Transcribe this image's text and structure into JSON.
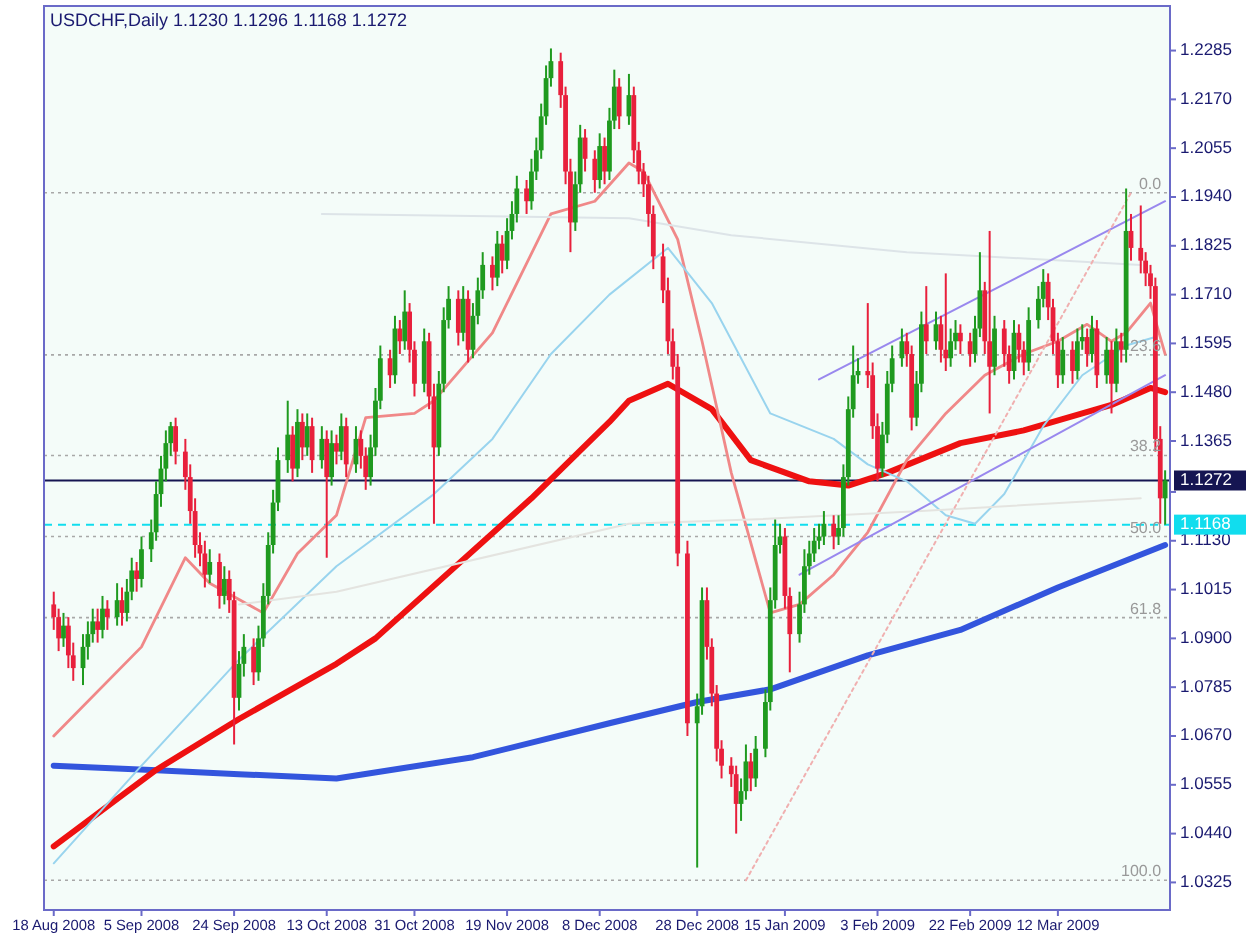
{
  "chart_data": {
    "type": "candlestick",
    "title": "USDCHF,Daily  1.1230 1.1296 1.1168 1.1272",
    "xlim": [
      "2008-08-16",
      "2009-04-04"
    ],
    "xticks": [
      {
        "value": "2008-08-18",
        "label": "18 Aug 2008"
      },
      {
        "value": "2008-09-05",
        "label": "5 Sep 2008"
      },
      {
        "value": "2008-09-24",
        "label": "24 Sep 2008"
      },
      {
        "value": "2008-10-13",
        "label": "13 Oct 2008"
      },
      {
        "value": "2008-10-31",
        "label": "31 Oct 2008"
      },
      {
        "value": "2008-11-19",
        "label": "19 Nov 2008"
      },
      {
        "value": "2008-12-08",
        "label": "8 Dec 2008"
      },
      {
        "value": "2008-12-28",
        "label": "28 Dec 2008"
      },
      {
        "value": "2009-01-15",
        "label": "15 Jan 2009"
      },
      {
        "value": "2009-02-03",
        "label": "3 Feb 2009"
      },
      {
        "value": "2009-02-22",
        "label": "22 Feb 2009"
      },
      {
        "value": "2009-03-12",
        "label": "12 Mar 2009"
      }
    ],
    "ylim": [
      1.026,
      1.239
    ],
    "yticks": [
      1.2285,
      {
        "value": 1.217,
        "label": "1.2170"
      },
      1.2055,
      {
        "value": 1.194,
        "label": "1.1940"
      },
      1.1825,
      {
        "value": 1.171,
        "label": "1.1710"
      },
      1.1595,
      {
        "value": 1.148,
        "label": "1.1480"
      },
      1.1365,
      {
        "value": 1.1245,
        "label": null
      },
      {
        "value": 1.113,
        "label": "1.1130"
      },
      1.1015,
      {
        "value": 1.09,
        "label": "1.0900"
      },
      1.0785,
      {
        "value": 1.067,
        "label": "1.0670"
      },
      1.0555,
      {
        "value": 1.044,
        "label": "1.0440"
      },
      1.0325
    ],
    "x": [
      "2008-08-18",
      "2008-08-19",
      "2008-08-20",
      "2008-08-21",
      "2008-08-22",
      "2008-08-24",
      "2008-08-25",
      "2008-08-26",
      "2008-08-27",
      "2008-08-28",
      "2008-08-29",
      "2008-08-31",
      "2008-09-01",
      "2008-09-02",
      "2008-09-03",
      "2008-09-04",
      "2008-09-05",
      "2008-09-07",
      "2008-09-08",
      "2008-09-09",
      "2008-09-10",
      "2008-09-11",
      "2008-09-12",
      "2008-09-14",
      "2008-09-15",
      "2008-09-16",
      "2008-09-17",
      "2008-09-18",
      "2008-09-19",
      "2008-09-21",
      "2008-09-22",
      "2008-09-23",
      "2008-09-24",
      "2008-09-25",
      "2008-09-26",
      "2008-09-28",
      "2008-09-29",
      "2008-09-30",
      "2008-10-01",
      "2008-10-02",
      "2008-10-03",
      "2008-10-05",
      "2008-10-06",
      "2008-10-07",
      "2008-10-08",
      "2008-10-09",
      "2008-10-10",
      "2008-10-12",
      "2008-10-13",
      "2008-10-14",
      "2008-10-15",
      "2008-10-16",
      "2008-10-17",
      "2008-10-19",
      "2008-10-20",
      "2008-10-21",
      "2008-10-22",
      "2008-10-23",
      "2008-10-24",
      "2008-10-26",
      "2008-10-27",
      "2008-10-28",
      "2008-10-29",
      "2008-10-30",
      "2008-10-31",
      "2008-11-02",
      "2008-11-03",
      "2008-11-04",
      "2008-11-05",
      "2008-11-06",
      "2008-11-07",
      "2008-11-09",
      "2008-11-10",
      "2008-11-11",
      "2008-11-12",
      "2008-11-13",
      "2008-11-14",
      "2008-11-16",
      "2008-11-17",
      "2008-11-18",
      "2008-11-19",
      "2008-11-20",
      "2008-11-21",
      "2008-11-23",
      "2008-11-24",
      "2008-11-25",
      "2008-11-26",
      "2008-11-27",
      "2008-11-28",
      "2008-11-30",
      "2008-12-01",
      "2008-12-02",
      "2008-12-03",
      "2008-12-04",
      "2008-12-05",
      "2008-12-07",
      "2008-12-08",
      "2008-12-09",
      "2008-12-10",
      "2008-12-11",
      "2008-12-12",
      "2008-12-14",
      "2008-12-15",
      "2008-12-16",
      "2008-12-17",
      "2008-12-18",
      "2008-12-19",
      "2008-12-21",
      "2008-12-22",
      "2008-12-23",
      "2008-12-24",
      "2008-12-26",
      "2008-12-28",
      "2008-12-29",
      "2008-12-30",
      "2008-12-31",
      "2009-01-01",
      "2009-01-02",
      "2009-01-04",
      "2009-01-05",
      "2009-01-06",
      "2009-01-07",
      "2009-01-08",
      "2009-01-09",
      "2009-01-11",
      "2009-01-12",
      "2009-01-13",
      "2009-01-14",
      "2009-01-15",
      "2009-01-16",
      "2009-01-18",
      "2009-01-19",
      "2009-01-20",
      "2009-01-21",
      "2009-01-22",
      "2009-01-23",
      "2009-01-25",
      "2009-01-26",
      "2009-01-27",
      "2009-01-28",
      "2009-01-29",
      "2009-01-30",
      "2009-02-01",
      "2009-02-02",
      "2009-02-03",
      "2009-02-04",
      "2009-02-05",
      "2009-02-06",
      "2009-02-08",
      "2009-02-09",
      "2009-02-10",
      "2009-02-11",
      "2009-02-12",
      "2009-02-13",
      "2009-02-15",
      "2009-02-16",
      "2009-02-17",
      "2009-02-18",
      "2009-02-19",
      "2009-02-20",
      "2009-02-22",
      "2009-02-23",
      "2009-02-24",
      "2009-02-25",
      "2009-02-26",
      "2009-02-27",
      "2009-03-01",
      "2009-03-02",
      "2009-03-03",
      "2009-03-04",
      "2009-03-05",
      "2009-03-06",
      "2009-03-08",
      "2009-03-09",
      "2009-03-10",
      "2009-03-11",
      "2009-03-12",
      "2009-03-13",
      "2009-03-15",
      "2009-03-16",
      "2009-03-17",
      "2009-03-18",
      "2009-03-19",
      "2009-03-20",
      "2009-03-22",
      "2009-03-23",
      "2009-03-24",
      "2009-03-25",
      "2009-03-26",
      "2009-03-27",
      "2009-03-29",
      "2009-03-30",
      "2009-03-31",
      "2009-04-01",
      "2009-04-02",
      "2009-04-03"
    ],
    "ohlc": [
      [
        1.098,
        1.101,
        1.092,
        1.095
      ],
      [
        1.095,
        1.097,
        1.087,
        1.09
      ],
      [
        1.09,
        1.096,
        1.088,
        1.093
      ],
      [
        1.093,
        1.095,
        1.083,
        1.086
      ],
      [
        1.086,
        1.089,
        1.08,
        1.083
      ],
      [
        1.083,
        1.091,
        1.079,
        1.088
      ],
      [
        1.088,
        1.094,
        1.085,
        1.091
      ],
      [
        1.091,
        1.097,
        1.089,
        1.094
      ],
      [
        1.094,
        1.097,
        1.089,
        1.092
      ],
      [
        1.092,
        1.1,
        1.09,
        1.097
      ],
      [
        1.097,
        1.099,
        1.092,
        1.095
      ],
      [
        1.095,
        1.103,
        1.093,
        1.099
      ],
      [
        1.099,
        1.102,
        1.093,
        1.096
      ],
      [
        1.096,
        1.104,
        1.094,
        1.101
      ],
      [
        1.101,
        1.109,
        1.099,
        1.106
      ],
      [
        1.106,
        1.108,
        1.101,
        1.104
      ],
      [
        1.104,
        1.114,
        1.102,
        1.111
      ],
      [
        1.111,
        1.118,
        1.108,
        1.115
      ],
      [
        1.115,
        1.127,
        1.113,
        1.124
      ],
      [
        1.124,
        1.133,
        1.121,
        1.13
      ],
      [
        1.13,
        1.139,
        1.127,
        1.136
      ],
      [
        1.136,
        1.141,
        1.133,
        1.14
      ],
      [
        1.14,
        1.142,
        1.131,
        1.134
      ],
      [
        1.134,
        1.137,
        1.125,
        1.128
      ],
      [
        1.128,
        1.131,
        1.117,
        1.12
      ],
      [
        1.12,
        1.123,
        1.109,
        1.112
      ],
      [
        1.112,
        1.115,
        1.107,
        1.11
      ],
      [
        1.11,
        1.113,
        1.102,
        1.105
      ],
      [
        1.105,
        1.111,
        1.103,
        1.108
      ],
      [
        1.108,
        1.11,
        1.097,
        1.1
      ],
      [
        1.1,
        1.107,
        1.098,
        1.104
      ],
      [
        1.104,
        1.106,
        1.096,
        1.099
      ],
      [
        1.099,
        1.101,
        1.065,
        1.076
      ],
      [
        1.076,
        1.087,
        1.073,
        1.084
      ],
      [
        1.084,
        1.091,
        1.081,
        1.088
      ],
      [
        1.088,
        1.09,
        1.079,
        1.082
      ],
      [
        1.082,
        1.093,
        1.08,
        1.09
      ],
      [
        1.09,
        1.103,
        1.088,
        1.1
      ],
      [
        1.1,
        1.115,
        1.098,
        1.112
      ],
      [
        1.112,
        1.125,
        1.11,
        1.122
      ],
      [
        1.122,
        1.135,
        1.12,
        1.132
      ],
      [
        1.132,
        1.146,
        1.129,
        1.138
      ],
      [
        1.138,
        1.14,
        1.127,
        1.13
      ],
      [
        1.13,
        1.144,
        1.128,
        1.141
      ],
      [
        1.141,
        1.143,
        1.132,
        1.135
      ],
      [
        1.135,
        1.143,
        1.133,
        1.14
      ],
      [
        1.14,
        1.142,
        1.129,
        1.132
      ],
      [
        1.132,
        1.14,
        1.13,
        1.137
      ],
      [
        1.137,
        1.139,
        1.109,
        1.128
      ],
      [
        1.128,
        1.139,
        1.126,
        1.136
      ],
      [
        1.136,
        1.138,
        1.131,
        1.134
      ],
      [
        1.134,
        1.143,
        1.132,
        1.14
      ],
      [
        1.14,
        1.142,
        1.128,
        1.131
      ],
      [
        1.131,
        1.14,
        1.129,
        1.137
      ],
      [
        1.137,
        1.139,
        1.13,
        1.133
      ],
      [
        1.133,
        1.135,
        1.125,
        1.128
      ],
      [
        1.128,
        1.138,
        1.126,
        1.135
      ],
      [
        1.135,
        1.149,
        1.133,
        1.146
      ],
      [
        1.146,
        1.159,
        1.144,
        1.156
      ],
      [
        1.156,
        1.158,
        1.149,
        1.152
      ],
      [
        1.152,
        1.166,
        1.15,
        1.163
      ],
      [
        1.163,
        1.165,
        1.157,
        1.16
      ],
      [
        1.16,
        1.172,
        1.158,
        1.167
      ],
      [
        1.167,
        1.169,
        1.155,
        1.158
      ],
      [
        1.158,
        1.16,
        1.147,
        1.15
      ],
      [
        1.15,
        1.163,
        1.148,
        1.16
      ],
      [
        1.16,
        1.162,
        1.144,
        1.147
      ],
      [
        1.147,
        1.15,
        1.117,
        1.135
      ],
      [
        1.135,
        1.153,
        1.133,
        1.15
      ],
      [
        1.15,
        1.168,
        1.148,
        1.165
      ],
      [
        1.165,
        1.173,
        1.163,
        1.17
      ],
      [
        1.17,
        1.172,
        1.159,
        1.162
      ],
      [
        1.162,
        1.173,
        1.16,
        1.17
      ],
      [
        1.17,
        1.172,
        1.155,
        1.158
      ],
      [
        1.158,
        1.169,
        1.156,
        1.166
      ],
      [
        1.166,
        1.175,
        1.164,
        1.172
      ],
      [
        1.172,
        1.181,
        1.17,
        1.178
      ],
      [
        1.178,
        1.18,
        1.172,
        1.175
      ],
      [
        1.175,
        1.186,
        1.173,
        1.183
      ],
      [
        1.183,
        1.185,
        1.176,
        1.179
      ],
      [
        1.179,
        1.189,
        1.177,
        1.186
      ],
      [
        1.186,
        1.193,
        1.184,
        1.19
      ],
      [
        1.19,
        1.199,
        1.188,
        1.196
      ],
      [
        1.196,
        1.198,
        1.19,
        1.193
      ],
      [
        1.193,
        1.203,
        1.191,
        1.2
      ],
      [
        1.2,
        1.208,
        1.198,
        1.205
      ],
      [
        1.205,
        1.216,
        1.203,
        1.213
      ],
      [
        1.213,
        1.225,
        1.211,
        1.222
      ],
      [
        1.222,
        1.229,
        1.22,
        1.226
      ],
      [
        1.226,
        1.228,
        1.215,
        1.218
      ],
      [
        1.218,
        1.22,
        1.197,
        1.2
      ],
      [
        1.2,
        1.203,
        1.181,
        1.188
      ],
      [
        1.188,
        1.2,
        1.186,
        1.197
      ],
      [
        1.197,
        1.211,
        1.195,
        1.208
      ],
      [
        1.208,
        1.21,
        1.2,
        1.203
      ],
      [
        1.203,
        1.205,
        1.195,
        1.198
      ],
      [
        1.198,
        1.209,
        1.196,
        1.206
      ],
      [
        1.206,
        1.208,
        1.197,
        1.2
      ],
      [
        1.2,
        1.215,
        1.198,
        1.212
      ],
      [
        1.212,
        1.224,
        1.21,
        1.22
      ],
      [
        1.22,
        1.222,
        1.21,
        1.213
      ],
      [
        1.213,
        1.223,
        1.211,
        1.218
      ],
      [
        1.218,
        1.22,
        1.202,
        1.205
      ],
      [
        1.205,
        1.207,
        1.197,
        1.2
      ],
      [
        1.2,
        1.202,
        1.194,
        1.197
      ],
      [
        1.197,
        1.199,
        1.187,
        1.19
      ],
      [
        1.19,
        1.192,
        1.177,
        1.18
      ],
      [
        1.18,
        1.183,
        1.169,
        1.172
      ],
      [
        1.172,
        1.175,
        1.157,
        1.16
      ],
      [
        1.16,
        1.163,
        1.151,
        1.154
      ],
      [
        1.154,
        1.157,
        1.107,
        1.11
      ],
      [
        1.11,
        1.113,
        1.067,
        1.07
      ],
      [
        1.07,
        1.077,
        1.036,
        1.074
      ],
      [
        1.074,
        1.102,
        1.072,
        1.099
      ],
      [
        1.099,
        1.102,
        1.085,
        1.088
      ],
      [
        1.088,
        1.09,
        1.074,
        1.077
      ],
      [
        1.077,
        1.079,
        1.061,
        1.064
      ],
      [
        1.064,
        1.066,
        1.057,
        1.06
      ],
      [
        1.06,
        1.062,
        1.055,
        1.058
      ],
      [
        1.058,
        1.06,
        1.044,
        1.051
      ],
      [
        1.051,
        1.057,
        1.047,
        1.054
      ],
      [
        1.054,
        1.065,
        1.052,
        1.061
      ],
      [
        1.061,
        1.063,
        1.054,
        1.057
      ],
      [
        1.057,
        1.067,
        1.055,
        1.064
      ],
      [
        1.064,
        1.078,
        1.062,
        1.075
      ],
      [
        1.075,
        1.102,
        1.073,
        1.099
      ],
      [
        1.099,
        1.118,
        1.097,
        1.112
      ],
      [
        1.112,
        1.117,
        1.11,
        1.114
      ],
      [
        1.114,
        1.116,
        1.097,
        1.1
      ],
      [
        1.1,
        1.102,
        1.082,
        1.091
      ],
      [
        1.091,
        1.101,
        1.089,
        1.098
      ],
      [
        1.098,
        1.111,
        1.096,
        1.107
      ],
      [
        1.107,
        1.113,
        1.105,
        1.11
      ],
      [
        1.11,
        1.116,
        1.108,
        1.113
      ],
      [
        1.113,
        1.117,
        1.111,
        1.114
      ],
      [
        1.114,
        1.12,
        1.112,
        1.117
      ],
      [
        1.117,
        1.119,
        1.111,
        1.114
      ],
      [
        1.114,
        1.119,
        1.112,
        1.116
      ],
      [
        1.116,
        1.131,
        1.114,
        1.128
      ],
      [
        1.128,
        1.147,
        1.126,
        1.144
      ],
      [
        1.144,
        1.159,
        1.142,
        1.152
      ],
      [
        1.152,
        1.156,
        1.15,
        1.153
      ],
      [
        1.153,
        1.169,
        1.149,
        1.152
      ],
      [
        1.152,
        1.155,
        1.137,
        1.14
      ],
      [
        1.14,
        1.143,
        1.127,
        1.13
      ],
      [
        1.13,
        1.141,
        1.128,
        1.138
      ],
      [
        1.138,
        1.153,
        1.136,
        1.15
      ],
      [
        1.15,
        1.159,
        1.148,
        1.156
      ],
      [
        1.156,
        1.163,
        1.154,
        1.16
      ],
      [
        1.16,
        1.162,
        1.154,
        1.157
      ],
      [
        1.157,
        1.159,
        1.139,
        1.142
      ],
      [
        1.142,
        1.153,
        1.14,
        1.15
      ],
      [
        1.15,
        1.167,
        1.148,
        1.164
      ],
      [
        1.164,
        1.173,
        1.157,
        1.16
      ],
      [
        1.16,
        1.167,
        1.158,
        1.164
      ],
      [
        1.164,
        1.166,
        1.155,
        1.158
      ],
      [
        1.158,
        1.176,
        1.153,
        1.156
      ],
      [
        1.156,
        1.163,
        1.154,
        1.16
      ],
      [
        1.16,
        1.165,
        1.158,
        1.162
      ],
      [
        1.162,
        1.164,
        1.157,
        1.16
      ],
      [
        1.16,
        1.162,
        1.154,
        1.157
      ],
      [
        1.157,
        1.166,
        1.155,
        1.163
      ],
      [
        1.163,
        1.181,
        1.161,
        1.172
      ],
      [
        1.172,
        1.174,
        1.157,
        1.16
      ],
      [
        1.16,
        1.186,
        1.143,
        1.154
      ],
      [
        1.154,
        1.166,
        1.152,
        1.163
      ],
      [
        1.163,
        1.165,
        1.154,
        1.157
      ],
      [
        1.157,
        1.159,
        1.15,
        1.153
      ],
      [
        1.153,
        1.165,
        1.151,
        1.162
      ],
      [
        1.162,
        1.164,
        1.155,
        1.158
      ],
      [
        1.158,
        1.16,
        1.152,
        1.155
      ],
      [
        1.155,
        1.168,
        1.153,
        1.165
      ],
      [
        1.165,
        1.173,
        1.163,
        1.17
      ],
      [
        1.17,
        1.177,
        1.168,
        1.174
      ],
      [
        1.174,
        1.176,
        1.165,
        1.168
      ],
      [
        1.168,
        1.17,
        1.157,
        1.16
      ],
      [
        1.16,
        1.162,
        1.149,
        1.152
      ],
      [
        1.152,
        1.161,
        1.15,
        1.158
      ],
      [
        1.158,
        1.16,
        1.15,
        1.153
      ],
      [
        1.153,
        1.163,
        1.151,
        1.16
      ],
      [
        1.16,
        1.164,
        1.158,
        1.161
      ],
      [
        1.161,
        1.163,
        1.154,
        1.157
      ],
      [
        1.157,
        1.166,
        1.155,
        1.163
      ],
      [
        1.163,
        1.165,
        1.149,
        1.152
      ],
      [
        1.152,
        1.161,
        1.15,
        1.158
      ],
      [
        1.158,
        1.16,
        1.143,
        1.15
      ],
      [
        1.15,
        1.163,
        1.148,
        1.16
      ],
      [
        1.16,
        1.162,
        1.155,
        1.158
      ],
      [
        1.158,
        1.196,
        1.155,
        1.186
      ],
      [
        1.186,
        1.19,
        1.179,
        1.182
      ],
      [
        1.182,
        1.192,
        1.176,
        1.179
      ],
      [
        1.179,
        1.181,
        1.173,
        1.176
      ],
      [
        1.176,
        1.178,
        1.17,
        1.173
      ],
      [
        1.173,
        1.175,
        1.134,
        1.137
      ],
      [
        1.137,
        1.14,
        1.117,
        1.123
      ],
      [
        1.123,
        1.1296,
        1.1168,
        1.1272
      ]
    ],
    "series": [
      {
        "type": "line",
        "color": "#3355dd",
        "x": [
          "2008-08-18",
          "2008-09-07",
          "2008-09-25",
          "2008-10-15",
          "2008-11-12",
          "2008-12-10",
          "2008-12-28",
          "2009-01-12",
          "2009-02-01",
          "2009-02-20",
          "2009-03-12",
          "2009-04-03"
        ],
        "values": [
          1.06,
          1.059,
          1.058,
          1.057,
          1.062,
          1.07,
          1.075,
          1.078,
          1.086,
          1.092,
          1.102,
          1.112
        ]
      },
      {
        "type": "line",
        "color": "#ee1111",
        "x": [
          "2008-08-18",
          "2008-09-08",
          "2008-09-25",
          "2008-10-15",
          "2008-10-23",
          "2008-11-24",
          "2008-12-10",
          "2008-12-14",
          "2008-12-22",
          "2008-12-31",
          "2009-01-08",
          "2009-01-20",
          "2009-01-28",
          "2009-02-05",
          "2009-02-20",
          "2009-03-05",
          "2009-03-17",
          "2009-03-23",
          "2009-03-31",
          "2009-04-03"
        ],
        "values": [
          1.041,
          1.059,
          1.071,
          1.084,
          1.09,
          1.123,
          1.141,
          1.146,
          1.15,
          1.144,
          1.132,
          1.127,
          1.126,
          1.129,
          1.136,
          1.139,
          1.143,
          1.145,
          1.149,
          1.148
        ]
      },
      {
        "type": "line",
        "color": "#f08888",
        "x": [
          "2008-08-18",
          "2008-09-05",
          "2008-09-14",
          "2008-09-19",
          "2008-09-30",
          "2008-10-07",
          "2008-10-15",
          "2008-10-21",
          "2008-10-31",
          "2008-11-04",
          "2008-11-16",
          "2008-11-28",
          "2008-12-07",
          "2008-12-14",
          "2008-12-17",
          "2008-12-24",
          "2008-12-29",
          "2009-01-04",
          "2009-01-12",
          "2009-01-18",
          "2009-01-25",
          "2009-02-01",
          "2009-02-09",
          "2009-02-17",
          "2009-02-25",
          "2009-03-05",
          "2009-03-12",
          "2009-03-18",
          "2009-03-23",
          "2009-03-26",
          "2009-03-31",
          "2009-04-03"
        ],
        "values": [
          1.067,
          1.088,
          1.109,
          1.103,
          1.096,
          1.11,
          1.119,
          1.142,
          1.143,
          1.146,
          1.162,
          1.19,
          1.193,
          1.202,
          1.2,
          1.184,
          1.16,
          1.129,
          1.096,
          1.098,
          1.105,
          1.115,
          1.132,
          1.143,
          1.152,
          1.157,
          1.16,
          1.164,
          1.16,
          1.162,
          1.169,
          1.157
        ]
      },
      {
        "type": "line",
        "color": "#99d4ee",
        "x": [
          "2008-08-18",
          "2008-09-05",
          "2008-09-25",
          "2008-10-15",
          "2008-11-04",
          "2008-11-16",
          "2008-11-28",
          "2008-12-10",
          "2008-12-22",
          "2008-12-31",
          "2009-01-12",
          "2009-01-25",
          "2009-02-01",
          "2009-02-09",
          "2009-02-17",
          "2009-02-23",
          "2009-03-01",
          "2009-03-09",
          "2009-03-17",
          "2009-03-26",
          "2009-04-01"
        ],
        "values": [
          1.037,
          1.06,
          1.085,
          1.107,
          1.124,
          1.137,
          1.157,
          1.171,
          1.182,
          1.169,
          1.143,
          1.137,
          1.131,
          1.127,
          1.119,
          1.117,
          1.124,
          1.14,
          1.152,
          1.159,
          1.161
        ]
      },
      {
        "type": "line",
        "color": "#dde4e8",
        "x": [
          "2008-10-12",
          "2008-12-14",
          "2009-01-04",
          "2009-02-09",
          "2009-03-29"
        ],
        "values": [
          1.19,
          1.189,
          1.185,
          1.181,
          1.178
        ]
      },
      {
        "type": "line",
        "color": "#e4e4e0",
        "x": [
          "2008-09-25",
          "2008-10-15",
          "2008-12-14",
          "2009-01-08",
          "2009-02-12",
          "2009-03-29"
        ],
        "values": [
          1.098,
          1.101,
          1.117,
          1.118,
          1.12,
          1.123
        ]
      },
      {
        "type": "line",
        "color": "#9988ee",
        "x": [
          "2009-01-22",
          "2009-04-03"
        ],
        "values": [
          1.151,
          1.193
        ]
      },
      {
        "type": "line",
        "color": "#9988ee",
        "x": [
          "2009-01-18",
          "2009-04-03"
        ],
        "values": [
          1.105,
          1.152
        ]
      },
      {
        "type": "line",
        "color": "#f0b0b0",
        "line_style": "dotted",
        "x": [
          "2009-01-07",
          "2009-03-27"
        ],
        "values": [
          1.033,
          1.195
        ]
      }
    ],
    "annotations": [
      {
        "text": "0.0",
        "x": "2009-04-03",
        "y": 1.195
      },
      {
        "text": "23.6",
        "x": "2009-04-03",
        "y": 1.1568
      },
      {
        "text": "38.2",
        "x": "2009-04-03",
        "y": 1.1331
      },
      {
        "text": "50.0",
        "x": "2009-04-03",
        "y": 1.114
      },
      {
        "text": "61.8",
        "x": "2009-04-03",
        "y": 1.0949
      },
      {
        "text": "100.0",
        "x": "2009-04-03",
        "y": 1.033
      }
    ],
    "ref_lines": [
      {
        "axis": "y",
        "value": 1.195,
        "color": "#a8a8a8",
        "line_style": "dotted"
      },
      {
        "axis": "y",
        "value": 1.1568,
        "color": "#a8a8a8",
        "line_style": "dotted"
      },
      {
        "axis": "y",
        "value": 1.1331,
        "color": "#a8a8a8",
        "line_style": "dotted"
      },
      {
        "axis": "y",
        "value": 1.114,
        "color": "#a8a8a8",
        "line_style": "dotted"
      },
      {
        "axis": "y",
        "value": 1.0949,
        "color": "#a8a8a8",
        "line_style": "dotted"
      },
      {
        "axis": "y",
        "value": 1.033,
        "color": "#a8a8a8",
        "line_style": "dotted"
      },
      {
        "axis": "y",
        "value": 1.1272,
        "label": "1.1272",
        "color": "#151552",
        "line_style": "solid"
      },
      {
        "axis": "y",
        "value": 1.1168,
        "label": "1.1168",
        "color": "#11ddee",
        "line_style": "dashed"
      }
    ]
  }
}
